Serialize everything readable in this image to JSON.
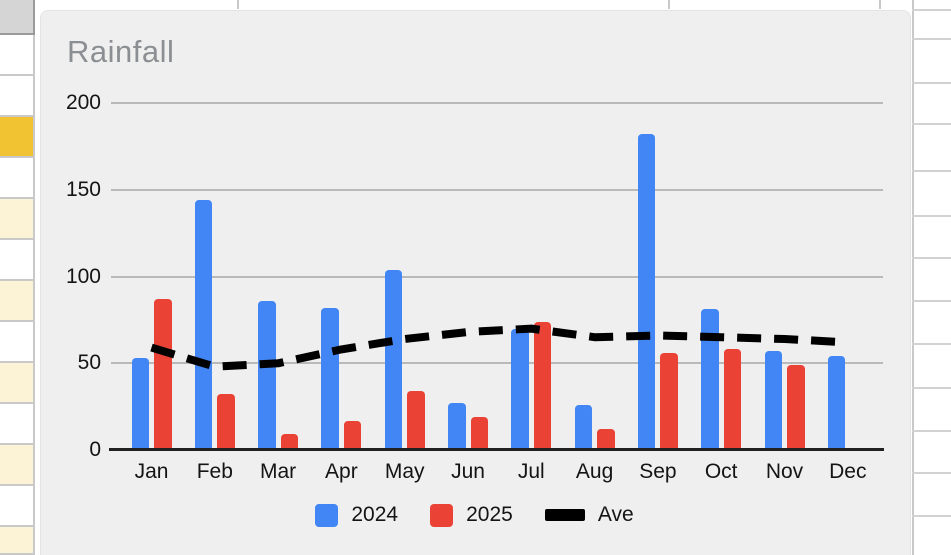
{
  "chart_data": {
    "type": "bar",
    "title": "Rainfall",
    "categories": [
      "Jan",
      "Feb",
      "Mar",
      "Apr",
      "May",
      "Jun",
      "Jul",
      "Aug",
      "Sep",
      "Oct",
      "Nov",
      "Dec"
    ],
    "series": [
      {
        "name": "2024",
        "type": "bar",
        "color": "#4285f4",
        "values": [
          53,
          144,
          86,
          82,
          104,
          27,
          70,
          26,
          182,
          81,
          57,
          54
        ]
      },
      {
        "name": "2025",
        "type": "bar",
        "color": "#ea4335",
        "values": [
          87,
          32,
          9,
          17,
          34,
          19,
          74,
          12,
          56,
          58,
          49,
          null
        ]
      },
      {
        "name": "Ave",
        "type": "line",
        "color": "#000000",
        "style": "dashed",
        "values": [
          59,
          48,
          50,
          58,
          64,
          68,
          70,
          65,
          66,
          65,
          64,
          62
        ]
      }
    ],
    "ylim": [
      0,
      200
    ],
    "y_ticks": [
      200,
      150,
      100,
      50,
      0
    ],
    "grid": true,
    "legend_position": "bottom"
  },
  "chart": {
    "title_color": "#8b8e92",
    "background_color": "#efefef",
    "gridline_color": "#b9b9b9",
    "axis_color": "#212121",
    "label_color": "#141414"
  },
  "spreadsheet": {
    "border_color": "#c9c9c9",
    "header_cell_color": "#d5d5d5",
    "highlight_cell_color": "#f1c232",
    "tinted_cell_color": "#fcf3d6",
    "left_row_colors": [
      "#d5d5d5",
      "#ffffff",
      "#ffffff",
      "#f1c232",
      "#ffffff",
      "#fcf3d6",
      "#ffffff",
      "#fcf3d6",
      "#ffffff",
      "#fcf3d6",
      "#ffffff",
      "#fcf3d6",
      "#ffffff",
      "#fcf3d6"
    ]
  }
}
